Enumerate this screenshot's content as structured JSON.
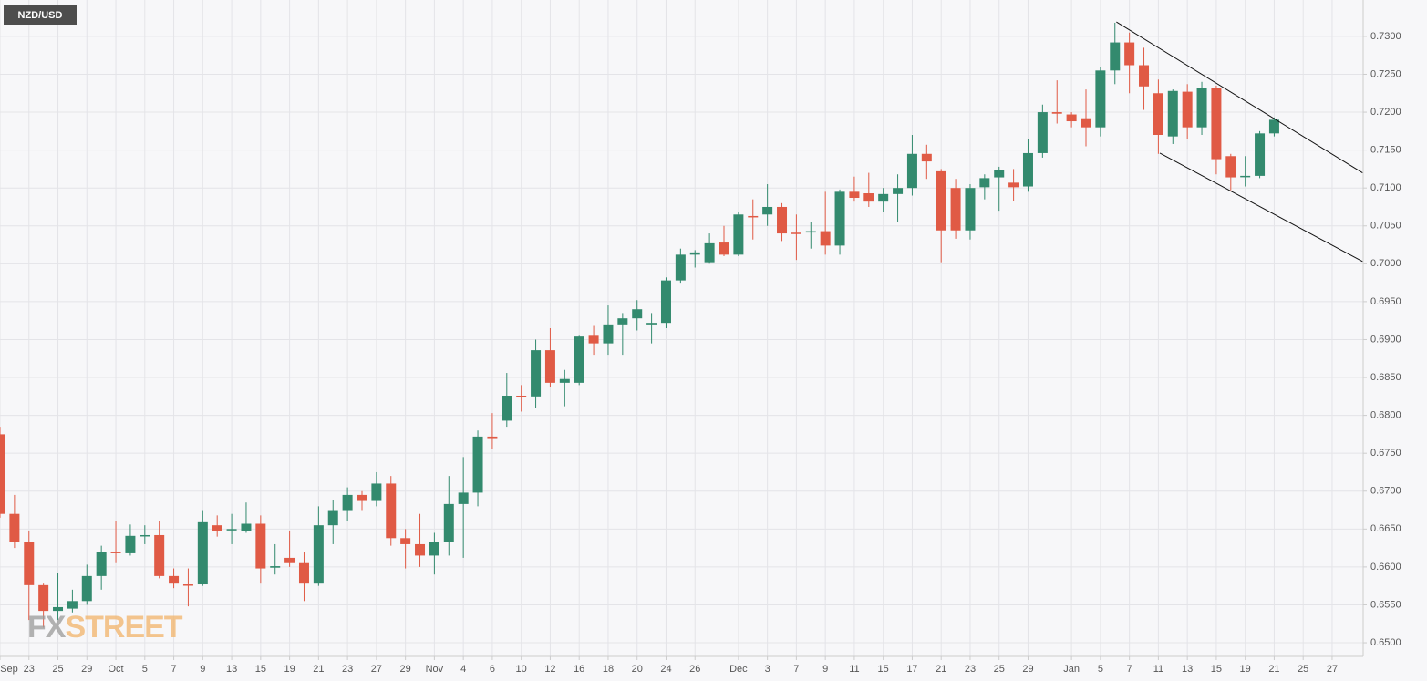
{
  "chart_data": {
    "type": "candlestick",
    "title": "NZD/USD",
    "watermark": [
      "FX",
      "STREET"
    ],
    "up_color": "#338a6e",
    "down_color": "#e05a45",
    "grid": true,
    "categories": [
      "Sep",
      null,
      "23",
      null,
      "25",
      null,
      "29",
      null,
      "Oct",
      null,
      "5",
      null,
      "7",
      null,
      "9",
      null,
      "13",
      null,
      "15",
      null,
      "19",
      null,
      "21",
      null,
      "23",
      null,
      "27",
      null,
      "29",
      null,
      "Nov",
      null,
      "4",
      null,
      "6",
      null,
      "10",
      null,
      "12",
      null,
      "16",
      null,
      "18",
      null,
      "20",
      null,
      "24",
      null,
      "26",
      null,
      null,
      "Dec",
      null,
      "3",
      null,
      "7",
      null,
      "9",
      null,
      "11",
      null,
      "15",
      null,
      "17",
      null,
      "21",
      null,
      "23",
      null,
      "25",
      null,
      "29",
      null,
      null,
      "Jan",
      null,
      "5",
      null,
      "7",
      null,
      "11",
      null,
      "13",
      null,
      "15",
      null,
      "19",
      null,
      "21",
      null,
      "25",
      null,
      "27"
    ],
    "open": [
      0.6775,
      0.667,
      0.6633,
      0.6576,
      0.6542,
      0.6545,
      0.6555,
      0.6588,
      0.662,
      0.6618,
      0.6641,
      0.6642,
      0.6588,
      0.6577,
      0.6577,
      0.6655,
      0.6649,
      0.6648,
      0.6657,
      0.6599,
      0.6612,
      0.6605,
      0.6578,
      0.6655,
      0.6675,
      0.6695,
      0.6687,
      0.671,
      0.6638,
      0.663,
      0.6615,
      0.6633,
      0.6683,
      0.6698,
      0.6772,
      0.6793,
      0.6826,
      0.6825,
      0.6886,
      0.6843,
      0.6843,
      0.6905,
      0.6895,
      0.692,
      0.6928,
      0.692,
      0.6922,
      0.6978,
      0.7012,
      0.7002,
      0.7028,
      0.7012,
      0.7063,
      0.7065,
      0.7075,
      0.7041,
      0.7042,
      0.7043,
      0.7024,
      0.7095,
      0.7093,
      0.7082,
      0.7092,
      0.71,
      0.7145,
      0.7122,
      0.71,
      0.7044,
      0.7101,
      0.7114,
      0.7107,
      0.7102,
      0.7146,
      0.72,
      0.7197,
      0.7192,
      0.718,
      0.7255,
      0.7292,
      0.7262,
      0.7225,
      0.7168,
      0.7227,
      0.718,
      0.7232,
      0.7142,
      0.7115,
      0.7116,
      0.7172,
      null,
      null,
      null,
      null
    ],
    "high": [
      0.6785,
      0.6695,
      0.6648,
      0.6578,
      0.6592,
      0.657,
      0.6603,
      0.6628,
      0.666,
      0.6656,
      0.6655,
      0.666,
      0.6598,
      0.6598,
      0.6675,
      0.6668,
      0.667,
      0.6685,
      0.6668,
      0.663,
      0.6648,
      0.662,
      0.668,
      0.6688,
      0.6705,
      0.67,
      0.6725,
      0.672,
      0.665,
      0.667,
      0.6645,
      0.672,
      0.6745,
      0.678,
      0.6803,
      0.6856,
      0.684,
      0.69,
      0.6915,
      0.686,
      0.6905,
      0.6918,
      0.6945,
      0.6935,
      0.6952,
      0.6935,
      0.6982,
      0.702,
      0.7018,
      0.704,
      0.705,
      0.7068,
      0.7085,
      0.7105,
      0.708,
      0.7065,
      0.7055,
      0.7095,
      0.7098,
      0.7115,
      0.712,
      0.71,
      0.7118,
      0.717,
      0.7157,
      0.7125,
      0.7112,
      0.7105,
      0.7118,
      0.7128,
      0.7125,
      0.7165,
      0.721,
      0.7242,
      0.72,
      0.723,
      0.726,
      0.7318,
      0.7305,
      0.7285,
      0.7243,
      0.723,
      0.7237,
      0.724,
      0.7235,
      0.7145,
      0.7142,
      0.7175,
      0.7193,
      null,
      null,
      null,
      null
    ],
    "low": [
      0.6665,
      0.6625,
      0.653,
      0.652,
      0.653,
      0.654,
      0.655,
      0.657,
      0.6605,
      0.6615,
      0.663,
      0.6585,
      0.6572,
      0.6548,
      0.6575,
      0.664,
      0.663,
      0.6645,
      0.6578,
      0.659,
      0.66,
      0.6555,
      0.6575,
      0.663,
      0.666,
      0.6675,
      0.668,
      0.6628,
      0.6598,
      0.66,
      0.659,
      0.6615,
      0.6612,
      0.668,
      0.6755,
      0.6785,
      0.6805,
      0.681,
      0.6838,
      0.6812,
      0.684,
      0.688,
      0.688,
      0.688,
      0.6912,
      0.6895,
      0.6915,
      0.6975,
      0.6995,
      0.7,
      0.701,
      0.701,
      0.7032,
      0.705,
      0.703,
      0.7005,
      0.702,
      0.7012,
      0.7012,
      0.7082,
      0.7075,
      0.7068,
      0.7055,
      0.709,
      0.7112,
      0.7002,
      0.7033,
      0.7032,
      0.7085,
      0.707,
      0.7083,
      0.7095,
      0.714,
      0.7185,
      0.718,
      0.7155,
      0.7168,
      0.7237,
      0.7225,
      0.7203,
      0.7145,
      0.7158,
      0.7165,
      0.717,
      0.7118,
      0.7097,
      0.7102,
      0.7113,
      0.7168,
      null,
      null,
      null,
      null
    ],
    "close": [
      0.667,
      0.6633,
      0.6576,
      0.6542,
      0.6547,
      0.6555,
      0.6588,
      0.662,
      0.6618,
      0.6641,
      0.6642,
      0.6588,
      0.6578,
      0.6576,
      0.6659,
      0.6648,
      0.665,
      0.6657,
      0.6598,
      0.6601,
      0.6605,
      0.6578,
      0.6655,
      0.6675,
      0.6695,
      0.6687,
      0.671,
      0.6638,
      0.663,
      0.6615,
      0.6633,
      0.6683,
      0.6698,
      0.6772,
      0.677,
      0.6826,
      0.6825,
      0.6886,
      0.6843,
      0.6848,
      0.6904,
      0.6895,
      0.692,
      0.6928,
      0.694,
      0.6922,
      0.6978,
      0.7012,
      0.7015,
      0.7027,
      0.7012,
      0.7065,
      0.7062,
      0.7075,
      0.704,
      0.704,
      0.7043,
      0.7024,
      0.7095,
      0.7087,
      0.7082,
      0.7092,
      0.71,
      0.7145,
      0.7135,
      0.7044,
      0.7044,
      0.71,
      0.7113,
      0.7124,
      0.7101,
      0.7146,
      0.72,
      0.7198,
      0.7188,
      0.718,
      0.7255,
      0.7292,
      0.7262,
      0.7234,
      0.717,
      0.7228,
      0.718,
      0.7232,
      0.7138,
      0.7114,
      0.7116,
      0.7172,
      0.719,
      null,
      null,
      null,
      null
    ],
    "trendlines": [
      {
        "x": [
          77.1,
          94.1
        ],
        "y": [
          0.7319,
          0.712
        ]
      },
      {
        "x": [
          80.1,
          94.1
        ],
        "y": [
          0.7146,
          0.7003
        ]
      }
    ],
    "ylim": [
      0.6482,
      0.7348
    ],
    "yticks": [
      {
        "value": 0.65,
        "label": "0.6500"
      },
      {
        "value": 0.655,
        "label": "0.6550"
      },
      {
        "value": 0.66,
        "label": "0.6600"
      },
      {
        "value": 0.665,
        "label": "0.6650"
      },
      {
        "value": 0.67,
        "label": "0.6700"
      },
      {
        "value": 0.675,
        "label": "0.6750"
      },
      {
        "value": 0.68,
        "label": "0.6800"
      },
      {
        "value": 0.685,
        "label": "0.6850"
      },
      {
        "value": 0.69,
        "label": "0.6900"
      },
      {
        "value": 0.695,
        "label": "0.6950"
      },
      {
        "value": 0.7,
        "label": "0.7000"
      },
      {
        "value": 0.705,
        "label": "0.7050"
      },
      {
        "value": 0.71,
        "label": "0.7100"
      },
      {
        "value": 0.715,
        "label": "0.7150"
      },
      {
        "value": 0.72,
        "label": "0.7200"
      },
      {
        "value": 0.725,
        "label": "0.7250"
      },
      {
        "value": 0.73,
        "label": "0.7300"
      }
    ]
  }
}
